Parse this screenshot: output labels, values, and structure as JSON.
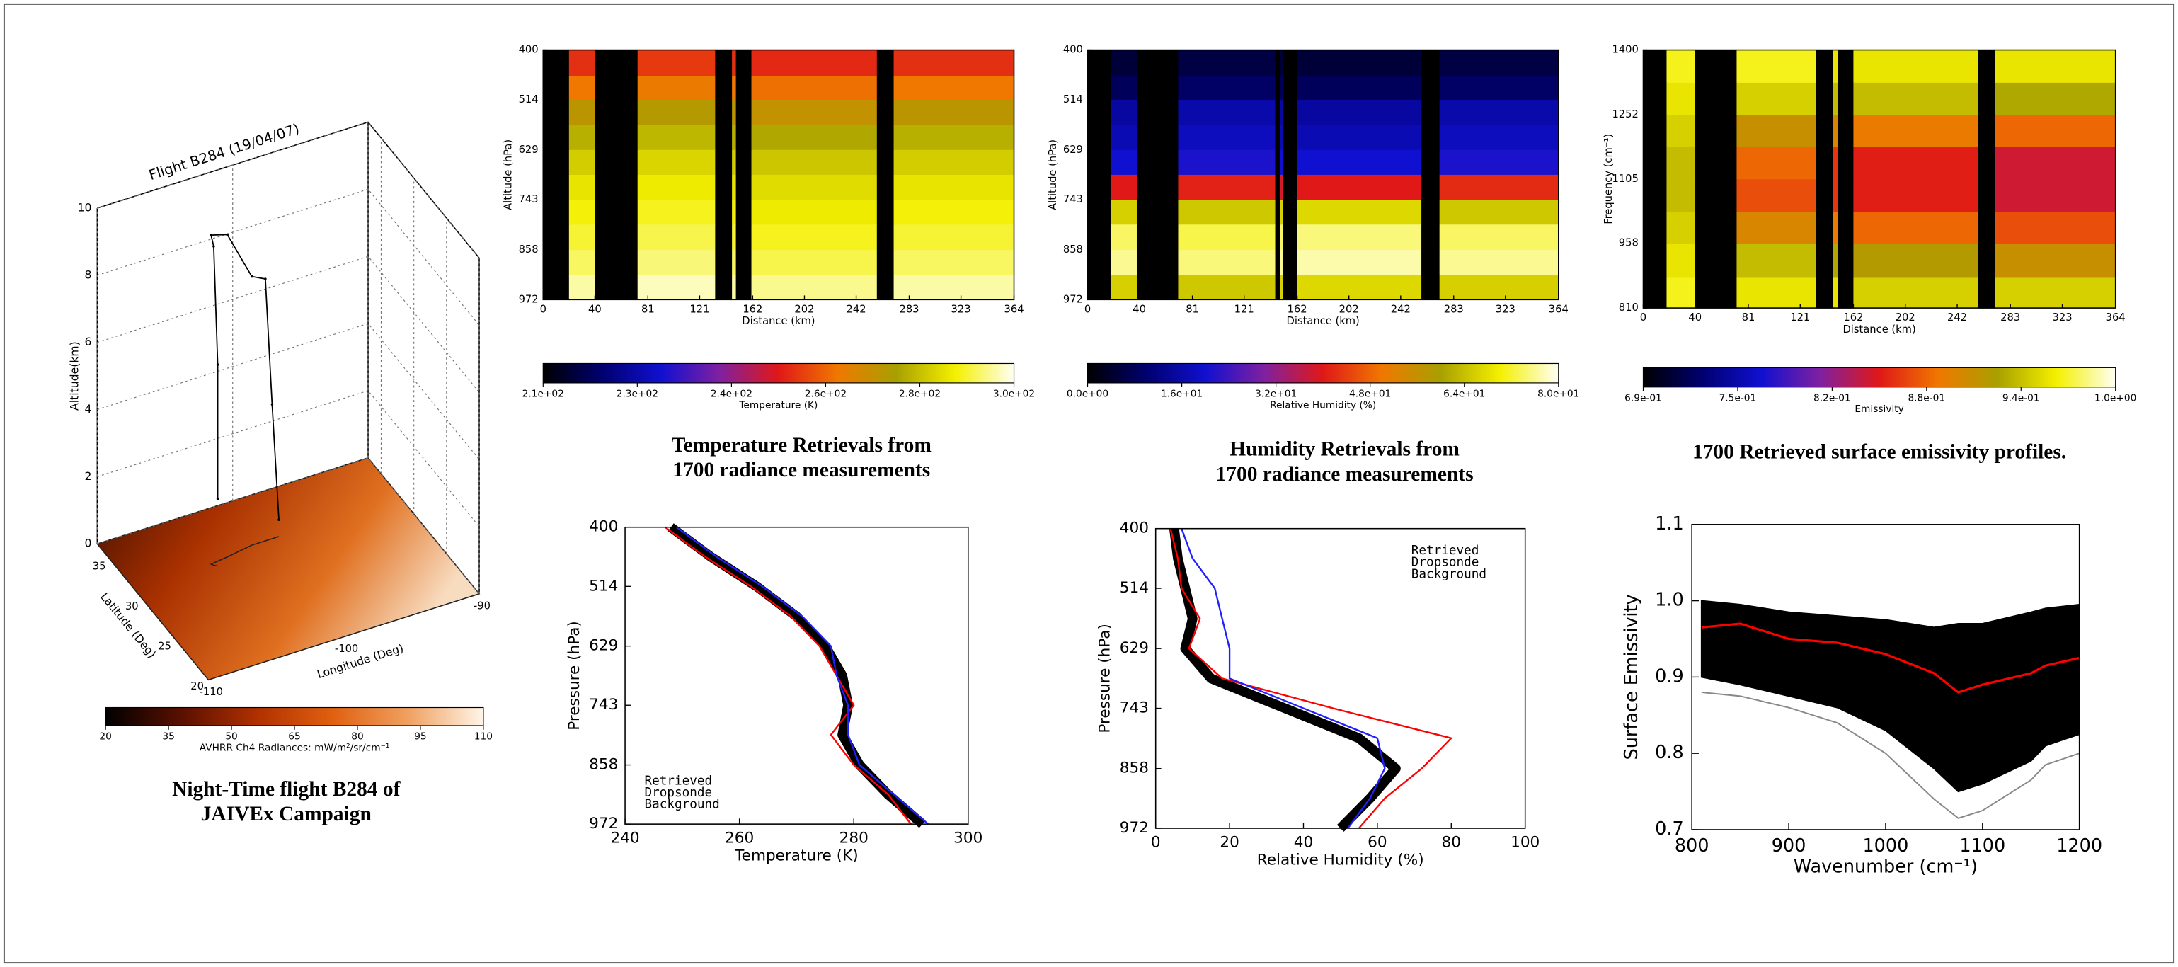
{
  "chart_data": [
    {
      "type": "flight3d",
      "title": "Flight B284 (19/04/07)",
      "xlabel": "Longitude (Deg)",
      "ylabel": "Latitude (Deg)",
      "zlabel": "Altitude(km)",
      "xlim": [
        -110,
        -90
      ],
      "xticks": [
        -110,
        -100,
        -90
      ],
      "ylim": [
        20,
        37
      ],
      "yticks": [
        20,
        25,
        30,
        35
      ],
      "zlim": [
        0,
        10
      ],
      "zticks": [
        0,
        2,
        4,
        6,
        8,
        10
      ],
      "track": {
        "color": "#000000",
        "x": [
          -104,
          -104,
          -104.2,
          -104.3,
          -103,
          -101,
          -100,
          -99.5,
          -99
        ],
        "y": [
          31,
          31,
          31.2,
          31.4,
          31.6,
          32,
          32,
          32,
          32
        ],
        "z": [
          2,
          6,
          9.5,
          9.8,
          9.6,
          8,
          7.8,
          4,
          0.5
        ]
      },
      "colormap": [
        "#000000",
        "#5a1000",
        "#b03000",
        "#e06010",
        "#f0a060",
        "#fff5e8"
      ],
      "colorbar": {
        "label": "AVHRR Ch4 Radiances: mW/m²/sr/cm⁻¹",
        "zlim": [
          20,
          110
        ],
        "ticks": [
          20,
          35,
          50,
          65,
          80,
          95,
          110
        ]
      },
      "caption": [
        "Night-Time flight B284 of",
        "JAIVEx Campaign"
      ]
    },
    {
      "type": "heatmap",
      "xlabel": "Distance (km)",
      "ylabel": "Altitude (hPa)",
      "xlim": [
        0,
        364
      ],
      "xticks": [
        0,
        40,
        81,
        121,
        162,
        202,
        242,
        283,
        323,
        364
      ],
      "ylim": [
        972,
        400
      ],
      "yticks": [
        400,
        514,
        629,
        743,
        858,
        972
      ],
      "x_edges": [
        0,
        20,
        40,
        73,
        133,
        146,
        149,
        161,
        258,
        271,
        364
      ],
      "y_edges": [
        400,
        460,
        514,
        572,
        629,
        686,
        743,
        800,
        858,
        915,
        972
      ],
      "z": [
        [
          null,
          256,
          null,
          257,
          null,
          256,
          null,
          255,
          null,
          256
        ],
        [
          null,
          264,
          null,
          265,
          null,
          264,
          null,
          263,
          null,
          264
        ],
        [
          null,
          272,
          null,
          273,
          null,
          272,
          null,
          271,
          null,
          272
        ],
        [
          null,
          277,
          null,
          278,
          null,
          277,
          null,
          276,
          null,
          277
        ],
        [
          null,
          281,
          null,
          282,
          null,
          281,
          null,
          280,
          null,
          281
        ],
        [
          null,
          284,
          null,
          285,
          null,
          284,
          null,
          283,
          null,
          284
        ],
        [
          null,
          286,
          null,
          287,
          null,
          286,
          null,
          285,
          null,
          286
        ],
        [
          null,
          288,
          null,
          289,
          null,
          288,
          null,
          287,
          null,
          288
        ],
        [
          null,
          290,
          null,
          291,
          null,
          290,
          null,
          289,
          null,
          290
        ],
        [
          null,
          293,
          null,
          294,
          null,
          293,
          null,
          292,
          null,
          293
        ]
      ],
      "colormap": [
        "#000000",
        "#000070",
        "#1010d0",
        "#8020a0",
        "#e01818",
        "#f07800",
        "#a8a000",
        "#f4f000",
        "#fffff4"
      ],
      "colorbar": {
        "label": "Temperature (K)",
        "zlim": [
          210,
          296.5
        ],
        "ticks": [
          {
            "value": 210,
            "label": "2.1e+02"
          },
          {
            "value": 227.3,
            "label": "2.3e+02"
          },
          {
            "value": 244.6,
            "label": "2.4e+02"
          },
          {
            "value": 261.9,
            "label": "2.6e+02"
          },
          {
            "value": 279.2,
            "label": "2.8e+02"
          },
          {
            "value": 296.5,
            "label": "3.0e+02"
          }
        ]
      },
      "caption": [
        "Temperature Retrievals from",
        "1700 radiance measurements"
      ]
    },
    {
      "type": "heatmap",
      "xlabel": "Distance (km)",
      "ylabel": "Altitude (hPa)",
      "xlim": [
        0,
        364
      ],
      "xticks": [
        0,
        40,
        81,
        121,
        162,
        202,
        242,
        283,
        323,
        364
      ],
      "ylim": [
        972,
        400
      ],
      "yticks": [
        400,
        514,
        629,
        743,
        858,
        972
      ],
      "x_edges": [
        0,
        18,
        38,
        70,
        145,
        149,
        151,
        162,
        258,
        272,
        364
      ],
      "y_edges": [
        400,
        460,
        514,
        572,
        629,
        686,
        743,
        800,
        858,
        915,
        972
      ],
      "z": [
        [
          null,
          5,
          null,
          6,
          null,
          5,
          null,
          5,
          null,
          6
        ],
        [
          null,
          8,
          null,
          9,
          null,
          8,
          null,
          8,
          null,
          9
        ],
        [
          null,
          15,
          null,
          16,
          null,
          15,
          null,
          15,
          null,
          16
        ],
        [
          null,
          17,
          null,
          18,
          null,
          17,
          null,
          17,
          null,
          18
        ],
        [
          null,
          20,
          null,
          21,
          null,
          20,
          null,
          20,
          null,
          21
        ],
        [
          null,
          40,
          null,
          41,
          null,
          39,
          null,
          40,
          null,
          42
        ],
        [
          null,
          66,
          null,
          65,
          null,
          66,
          null,
          67,
          null,
          65
        ],
        [
          null,
          74,
          null,
          73,
          null,
          74,
          null,
          75,
          null,
          74
        ],
        [
          null,
          76,
          null,
          75,
          null,
          76,
          null,
          77,
          null,
          76
        ],
        [
          null,
          66,
          null,
          65,
          null,
          66,
          null,
          67,
          null,
          66
        ]
      ],
      "colormap": [
        "#000000",
        "#000070",
        "#1010d0",
        "#8020a0",
        "#e01818",
        "#f07800",
        "#a8a000",
        "#f4f000",
        "#fffff4"
      ],
      "colorbar": {
        "label": "Relative Humidity (%)",
        "zlim": [
          0,
          80
        ],
        "ticks": [
          {
            "value": 0,
            "label": "0.0e+00"
          },
          {
            "value": 16,
            "label": "1.6e+01"
          },
          {
            "value": 32,
            "label": "3.2e+01"
          },
          {
            "value": 48,
            "label": "4.8e+01"
          },
          {
            "value": 64,
            "label": "6.4e+01"
          },
          {
            "value": 80,
            "label": "8.0e+01"
          }
        ]
      },
      "caption": [
        "Humidity Retrievals from",
        "1700 radiance measurements"
      ]
    },
    {
      "type": "heatmap",
      "xlabel": "Distance (km)",
      "ylabel": "Frequency (cm⁻¹)",
      "xlim": [
        0,
        364
      ],
      "xticks": [
        0,
        40,
        81,
        121,
        162,
        202,
        242,
        283,
        323,
        364
      ],
      "ylim": [
        810,
        1400
      ],
      "yticks": [
        810,
        958,
        1105,
        1252,
        1400
      ],
      "x_edges": [
        0,
        18,
        40,
        72,
        133,
        146,
        150,
        162,
        258,
        271,
        364
      ],
      "y_edges": [
        810,
        880,
        958,
        1030,
        1105,
        1180,
        1252,
        1326,
        1400
      ],
      "z": [
        [
          null,
          0.97,
          null,
          0.96,
          null,
          0.96,
          null,
          0.95,
          null,
          0.95
        ],
        [
          null,
          0.96,
          null,
          0.94,
          null,
          0.93,
          null,
          0.92,
          null,
          0.91
        ],
        [
          null,
          0.95,
          null,
          0.9,
          null,
          0.89,
          null,
          0.88,
          null,
          0.87
        ],
        [
          null,
          0.94,
          null,
          0.87,
          null,
          0.86,
          null,
          0.85,
          null,
          0.84
        ],
        [
          null,
          0.94,
          null,
          0.88,
          null,
          0.86,
          null,
          0.85,
          null,
          0.84
        ],
        [
          null,
          0.95,
          null,
          0.91,
          null,
          0.9,
          null,
          0.89,
          null,
          0.88
        ],
        [
          null,
          0.96,
          null,
          0.95,
          null,
          0.94,
          null,
          0.94,
          null,
          0.93
        ],
        [
          null,
          0.97,
          null,
          0.97,
          null,
          0.96,
          null,
          0.96,
          null,
          0.96
        ]
      ],
      "colormap": [
        "#000000",
        "#000070",
        "#1010d0",
        "#8020a0",
        "#e01818",
        "#f07800",
        "#a8a000",
        "#f4f000",
        "#fffff4"
      ],
      "colorbar": {
        "label": "Emissivity",
        "zlim": [
          0.69,
          1.005
        ],
        "ticks": [
          {
            "value": 0.69,
            "label": "6.9e-01"
          },
          {
            "value": 0.753,
            "label": "7.5e-01"
          },
          {
            "value": 0.816,
            "label": "8.2e-01"
          },
          {
            "value": 0.879,
            "label": "8.8e-01"
          },
          {
            "value": 0.942,
            "label": "9.4e-01"
          },
          {
            "value": 1.005,
            "label": "1.0e+00"
          }
        ]
      },
      "caption": [
        "1700  Retrieved surface emissivity profiles."
      ]
    },
    {
      "type": "profile",
      "xlabel": "Temperature (K)",
      "ylabel": "Pressure (hPa)",
      "xlim": [
        240,
        300
      ],
      "xticks": [
        240,
        260,
        280,
        300
      ],
      "ylim": [
        972,
        400
      ],
      "yticks": [
        400,
        514,
        629,
        743,
        858,
        972
      ],
      "legend": "lower left",
      "y": [
        400,
        457,
        514,
        572,
        629,
        686,
        743,
        800,
        858,
        915,
        972
      ],
      "series": [
        {
          "name": "Retrieved",
          "color": "#000000",
          "linewidth": 7,
          "values": [
            248,
            255,
            263,
            270,
            275,
            278,
            279,
            278,
            281,
            286,
            292
          ]
        },
        {
          "name": "Dropsonde",
          "color": "#ff0000",
          "linewidth": 1.2,
          "values": [
            247,
            254,
            262,
            269,
            274,
            277,
            280,
            276,
            280,
            286,
            290
          ]
        },
        {
          "name": "Background",
          "color": "#2020ff",
          "linewidth": 1.2,
          "values": [
            249,
            256,
            264,
            271,
            276,
            277,
            279,
            279,
            281,
            287,
            293
          ]
        }
      ]
    },
    {
      "type": "profile",
      "xlabel": "Relative Humidity (%)",
      "ylabel": "Pressure (hPa)",
      "xlim": [
        0,
        100
      ],
      "xticks": [
        0,
        20,
        40,
        60,
        80,
        100
      ],
      "ylim": [
        972,
        400
      ],
      "yticks": [
        400,
        514,
        629,
        743,
        858,
        972
      ],
      "legend": "upper right",
      "y": [
        400,
        457,
        514,
        572,
        629,
        686,
        743,
        800,
        858,
        915,
        972
      ],
      "series": [
        {
          "name": "Retrieved",
          "color": "#000000",
          "linewidth": 7,
          "values": [
            5,
            6,
            8,
            10,
            8,
            15,
            35,
            55,
            65,
            58,
            50
          ]
        },
        {
          "name": "Dropsonde",
          "color": "#ff0000",
          "linewidth": 1.2,
          "values": [
            4,
            6,
            7,
            12,
            9,
            18,
            48,
            80,
            72,
            62,
            55
          ]
        },
        {
          "name": "Background",
          "color": "#2020ff",
          "linewidth": 1.2,
          "values": [
            7,
            10,
            16,
            18,
            20,
            20,
            40,
            60,
            62,
            58,
            52
          ]
        }
      ]
    },
    {
      "type": "line",
      "xlabel": "Wavenumber (cm⁻¹)",
      "ylabel": "Surface Emissivity",
      "xlim": [
        800,
        1200
      ],
      "xticks": [
        800,
        900,
        1000,
        1100,
        1200
      ],
      "ylim": [
        0.7,
        1.1
      ],
      "yticks": [
        0.7,
        0.8,
        0.9,
        {
          "value": 1,
          "label": "1.0"
        },
        1.1
      ],
      "x": [
        810,
        850,
        900,
        950,
        1000,
        1050,
        1075,
        1100,
        1150,
        1165,
        1200
      ],
      "band": {
        "color": "#000000",
        "upper": [
          1.0,
          0.995,
          0.985,
          0.98,
          0.975,
          0.965,
          0.97,
          0.97,
          0.985,
          0.99,
          0.995
        ],
        "lower": [
          0.9,
          0.89,
          0.875,
          0.86,
          0.83,
          0.78,
          0.75,
          0.76,
          0.79,
          0.81,
          0.825
        ]
      },
      "series": [
        {
          "color": "#888888",
          "linewidth": 1,
          "values": [
            0.88,
            0.875,
            0.86,
            0.84,
            0.8,
            0.74,
            0.715,
            0.725,
            0.765,
            0.785,
            0.8
          ]
        },
        {
          "color": "#ff0000",
          "linewidth": 1.6,
          "values": [
            0.965,
            0.97,
            0.95,
            0.945,
            0.93,
            0.905,
            0.88,
            0.89,
            0.905,
            0.915,
            0.925
          ]
        }
      ]
    }
  ]
}
